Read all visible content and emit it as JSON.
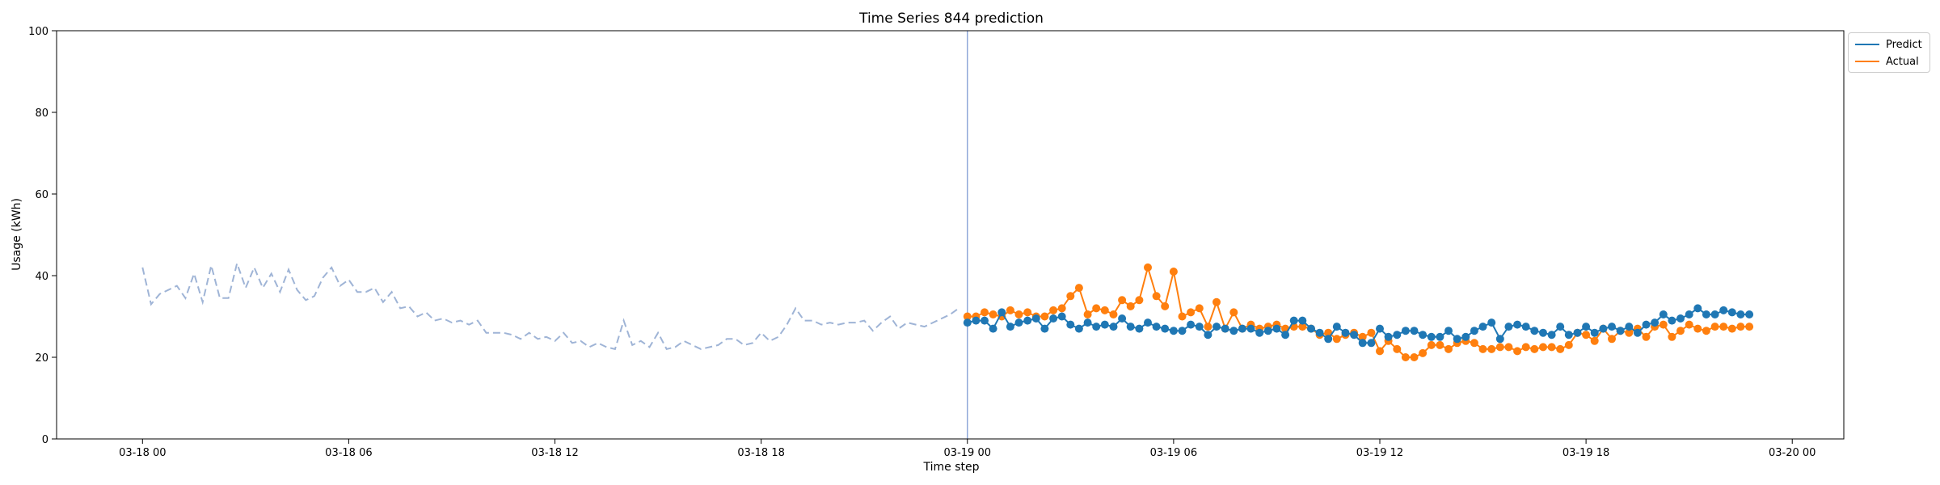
{
  "chart_data": {
    "type": "line",
    "title": "Time Series 844 prediction",
    "xlabel": "Time step",
    "ylabel": "Usage (kWh)",
    "ylim": [
      0,
      100
    ],
    "yticks": [
      0,
      20,
      40,
      60,
      80,
      100
    ],
    "xlim": [
      "2000-03-17 21:30",
      "2000-03-20 01:30"
    ],
    "xticks": [
      {
        "t": "2000-03-18 00:00",
        "label": "03-18 00"
      },
      {
        "t": "2000-03-18 06:00",
        "label": "03-18 06"
      },
      {
        "t": "2000-03-18 12:00",
        "label": "03-18 12"
      },
      {
        "t": "2000-03-18 18:00",
        "label": "03-18 18"
      },
      {
        "t": "2000-03-19 00:00",
        "label": "03-19 00"
      },
      {
        "t": "2000-03-19 06:00",
        "label": "03-19 06"
      },
      {
        "t": "2000-03-19 12:00",
        "label": "03-19 12"
      },
      {
        "t": "2000-03-19 18:00",
        "label": "03-19 18"
      },
      {
        "t": "2000-03-20 00:00",
        "label": "03-20 00"
      }
    ],
    "grid": false,
    "legend_position": "outside top-right",
    "forecast_start": "2000-03-19 00:00",
    "interval_minutes": 15,
    "history": {
      "style": "dashed",
      "color": "#9fb4d6",
      "start": "2000-03-18 00:00",
      "values": [
        42,
        33,
        35.5,
        36.5,
        37.5,
        34.5,
        40.5,
        33.5,
        42.5,
        34.5,
        34.5,
        43,
        37,
        42,
        37,
        40.5,
        36,
        41.5,
        36.5,
        34,
        35,
        39.5,
        42,
        37.5,
        39,
        36,
        36,
        37,
        33.5,
        36,
        32,
        32.5,
        30,
        31,
        29,
        29.5,
        28.5,
        29,
        28,
        29,
        26,
        26,
        26,
        25.5,
        24.5,
        26,
        24.5,
        25,
        24,
        26,
        23.5,
        24,
        22.5,
        23.5,
        22.5,
        22,
        29,
        23,
        24,
        22.5,
        26,
        22,
        22.5,
        24,
        23,
        22,
        22.5,
        23,
        24.5,
        24.5,
        23,
        23.5,
        26,
        24,
        25,
        28,
        32,
        29,
        29,
        28,
        28.5,
        28,
        28.5,
        28.5,
        29,
        26.5,
        28.5,
        30,
        27,
        28.5,
        28,
        27.5,
        28.5,
        29.5,
        30.5,
        32
      ]
    },
    "series": [
      {
        "name": "Predict",
        "color": "#1f77b4",
        "start": "2000-03-19 00:00",
        "values": [
          28.5,
          29,
          29,
          27,
          31,
          27.5,
          28.5,
          29,
          29.5,
          27,
          29.5,
          30,
          28,
          27,
          28.5,
          27.5,
          28,
          27.5,
          29.5,
          27.5,
          27,
          28.5,
          27.5,
          27,
          26.5,
          26.5,
          28,
          27.5,
          25.5,
          27.5,
          27,
          26.5,
          27,
          27,
          26,
          26.5,
          27,
          25.5,
          29,
          29,
          27,
          26,
          24.5,
          27.5,
          26,
          25.5,
          23.5,
          23.5,
          27,
          25,
          25.5,
          26.5,
          26.5,
          25.5,
          25,
          25,
          26.5,
          24.5,
          25,
          26.5,
          27.5,
          28.5,
          24.5,
          27.5,
          28,
          27.5,
          26.5,
          26,
          25.5,
          27.5,
          25.5,
          26,
          27.5,
          26,
          27,
          27.5,
          26.5,
          27.5,
          26,
          28,
          28.5,
          30.5,
          29,
          29.5,
          30.5,
          32,
          30.5,
          30.5,
          31.5,
          31,
          30.5,
          30.5
        ]
      },
      {
        "name": "Actual",
        "color": "#ff7f0e",
        "start": "2000-03-19 00:00",
        "values": [
          30,
          30,
          31,
          30.5,
          30,
          31.5,
          30.5,
          31,
          30,
          30,
          31.5,
          32,
          35,
          37,
          30.5,
          32,
          31.5,
          30.5,
          34,
          32.5,
          34,
          42,
          35,
          32.5,
          41,
          30,
          31,
          32,
          27.5,
          33.5,
          27,
          31,
          27,
          28,
          27,
          27.5,
          28,
          27,
          27.5,
          27.5,
          27,
          25.5,
          26,
          24.5,
          25.5,
          26,
          25,
          26,
          21.5,
          24,
          22,
          20,
          20,
          21,
          23,
          23,
          22,
          23.5,
          24,
          23.5,
          22,
          22,
          22.5,
          22.5,
          21.5,
          22.5,
          22,
          22.5,
          22.5,
          22,
          23,
          26,
          25.5,
          24,
          27,
          24.5,
          26.5,
          26,
          27,
          25,
          27.5,
          28,
          25,
          26.5,
          28,
          27,
          26.5,
          27.5,
          27.5,
          27,
          27.5,
          27.5
        ]
      }
    ]
  }
}
